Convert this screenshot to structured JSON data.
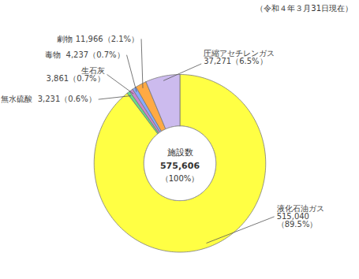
{
  "chart_data": {
    "type": "pie",
    "title": "（令和４年３月31日現在）",
    "categories": [
      "液化石油ガス",
      "無水硫酸",
      "生石灰",
      "毒物",
      "劇物",
      "圧縮アセチレンガス"
    ],
    "values": [
      515040,
      3231,
      3861,
      4237,
      11966,
      37271
    ],
    "colors": [
      "#ffff44",
      "#66dd88",
      "#cc88cc",
      "#88aaff",
      "#ffaa44",
      "#ccbbee"
    ],
    "data_labels": true,
    "value_labels": [
      "液化石油ガス\n515,040\n（89.5%）",
      "無水硫酸  3,231（0.6%）",
      "生石灰\n3,861（0.7%）",
      "毒物  4,237（0.7%）",
      "劇物 11,966（2.1%）",
      "圧縮アセチレンガス\n37,271（6.5%）"
    ],
    "annotations": [
      "施設数",
      "575,606",
      "（100%）"
    ]
  }
}
